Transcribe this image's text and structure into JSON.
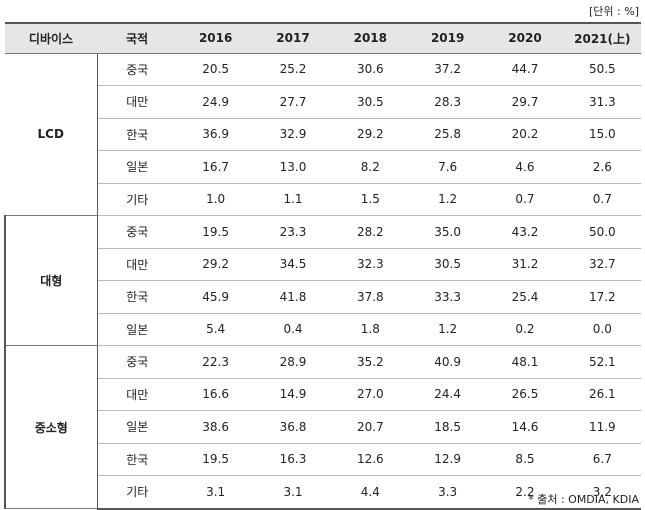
{
  "unit_note": "[단위 : %]",
  "source": "* 출처 : OMDIA, KDIA",
  "headers": [
    "디바이스",
    "국적",
    "2016",
    "2017",
    "2018",
    "2019",
    "2020",
    "2021(上)"
  ],
  "groups": [
    {
      "name": "LCD",
      "rows": [
        {
          "country": "중국",
          "values": [
            "20.5",
            "25.2",
            "30.6",
            "37.2",
            "44.7",
            "50.5"
          ]
        },
        {
          "country": "대만",
          "values": [
            "24.9",
            "27.7",
            "30.5",
            "28.3",
            "29.7",
            "31.3"
          ]
        },
        {
          "country": "한국",
          "values": [
            "36.9",
            "32.9",
            "29.2",
            "25.8",
            "20.2",
            "15.0"
          ]
        },
        {
          "country": "일본",
          "values": [
            "16.7",
            "13.0",
            "8.2",
            "7.6",
            "4.6",
            "2.6"
          ]
        },
        {
          "country": "기타",
          "values": [
            "1.0",
            "1.1",
            "1.5",
            "1.2",
            "0.7",
            "0.7"
          ]
        }
      ]
    },
    {
      "name": "대형",
      "rows": [
        {
          "country": "중국",
          "values": [
            "19.5",
            "23.3",
            "28.2",
            "35.0",
            "43.2",
            "50.0"
          ]
        },
        {
          "country": "대만",
          "values": [
            "29.2",
            "34.5",
            "32.3",
            "30.5",
            "31.2",
            "32.7"
          ]
        },
        {
          "country": "한국",
          "values": [
            "45.9",
            "41.8",
            "37.8",
            "33.3",
            "25.4",
            "17.2"
          ]
        },
        {
          "country": "일본",
          "values": [
            "5.4",
            "0.4",
            "1.8",
            "1.2",
            "0.2",
            "0.0"
          ]
        }
      ]
    },
    {
      "name": "중소형",
      "rows": [
        {
          "country": "중국",
          "values": [
            "22.3",
            "28.9",
            "35.2",
            "40.9",
            "48.1",
            "52.1"
          ]
        },
        {
          "country": "대만",
          "values": [
            "16.6",
            "14.9",
            "27.0",
            "24.4",
            "26.5",
            "26.1"
          ]
        },
        {
          "country": "일본",
          "values": [
            "38.6",
            "36.8",
            "20.7",
            "18.5",
            "14.6",
            "11.9"
          ]
        },
        {
          "country": "한국",
          "values": [
            "19.5",
            "16.3",
            "12.6",
            "12.9",
            "8.5",
            "6.7"
          ]
        },
        {
          "country": "기타",
          "values": [
            "3.1",
            "3.1",
            "4.4",
            "3.3",
            "2.2",
            "3.2"
          ]
        }
      ]
    }
  ]
}
